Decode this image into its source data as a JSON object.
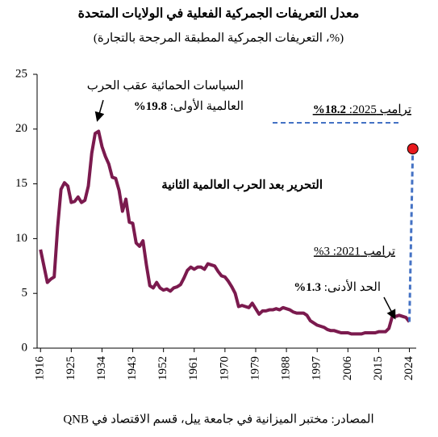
{
  "title": "معدل التعريفات الجمركية الفعلية في الولايات المتحدة",
  "subtitle": "(%، التعريفات الجمركية المطبقة المرجحة بالتجارة)",
  "source": "المصادر: مختبر الميزانية في جامعة ييل، قسم الاقتصاد في QNB",
  "chart_data": {
    "type": "line",
    "x": [
      1916,
      1917,
      1918,
      1919,
      1920,
      1921,
      1922,
      1923,
      1924,
      1925,
      1926,
      1927,
      1928,
      1929,
      1930,
      1931,
      1932,
      1933,
      1934,
      1935,
      1936,
      1937,
      1938,
      1939,
      1940,
      1941,
      1942,
      1943,
      1944,
      1945,
      1946,
      1947,
      1948,
      1949,
      1950,
      1951,
      1952,
      1953,
      1954,
      1955,
      1956,
      1957,
      1958,
      1959,
      1960,
      1961,
      1962,
      1963,
      1964,
      1965,
      1966,
      1967,
      1968,
      1969,
      1970,
      1971,
      1972,
      1973,
      1974,
      1975,
      1976,
      1977,
      1978,
      1979,
      1980,
      1981,
      1982,
      1983,
      1984,
      1985,
      1986,
      1987,
      1988,
      1989,
      1990,
      1991,
      1992,
      1993,
      1994,
      1995,
      1996,
      1997,
      1998,
      1999,
      2000,
      2001,
      2002,
      2003,
      2004,
      2005,
      2006,
      2007,
      2008,
      2009,
      2010,
      2011,
      2012,
      2013,
      2014,
      2015,
      2016,
      2017,
      2018,
      2019,
      2020,
      2021,
      2022,
      2023,
      2024
    ],
    "series": [
      {
        "color": "#7b1a4e",
        "values": [
          9,
          7.5,
          6,
          6.3,
          6.5,
          11,
          14.5,
          15.1,
          14.8,
          13.3,
          13.4,
          13.8,
          13.3,
          13.5,
          14.8,
          17.8,
          19.6,
          19.8,
          18.4,
          17.5,
          16.8,
          15.6,
          15.5,
          14.4,
          12.5,
          13.6,
          11.5,
          11.4,
          9.6,
          9.3,
          9.8,
          7.6,
          5.7,
          5.5,
          6,
          5.5,
          5.3,
          5.4,
          5.2,
          5.5,
          5.6,
          5.8,
          6.4,
          7.1,
          7.4,
          7.2,
          7.4,
          7.4,
          7.2,
          7.7,
          7.6,
          7.5,
          7,
          6.6,
          6.5,
          6.1,
          5.6,
          5,
          3.8,
          3.9,
          3.8,
          3.7,
          4.1,
          3.6,
          3.1,
          3.4,
          3.4,
          3.5,
          3.5,
          3.6,
          3.5,
          3.7,
          3.6,
          3.5,
          3.3,
          3.2,
          3.2,
          3.2,
          3,
          2.5,
          2.3,
          2.1,
          2,
          1.9,
          1.7,
          1.6,
          1.6,
          1.5,
          1.4,
          1.4,
          1.4,
          1.3,
          1.3,
          1.3,
          1.3,
          1.4,
          1.4,
          1.4,
          1.4,
          1.5,
          1.5,
          1.5,
          1.8,
          2.9,
          2.9,
          3,
          2.9,
          2.8,
          2.4
        ]
      }
    ],
    "projection": {
      "x": 2025,
      "value": 18.2,
      "color": "#e8191d",
      "line_color": "#4472c4"
    },
    "xlim": [
      1915,
      2026
    ],
    "xticks": [
      1916,
      1925,
      1934,
      1943,
      1952,
      1961,
      1970,
      1979,
      1988,
      1997,
      2006,
      2015,
      2024
    ],
    "ylim": [
      0,
      25
    ],
    "yticks": [
      0,
      5,
      10,
      15,
      20,
      25
    ],
    "annotations": {
      "peak_1": "السياسات الحمائية عقب الحرب",
      "peak_2": "العالمية الأولى: ",
      "peak_value": "19.8%",
      "liberalization": "التحرير بعد الحرب العالمية الثانية",
      "trump2025": "ترامب 2025: ",
      "trump2025_value": "18.2%",
      "trump2021": "ترامب 2021: 3%",
      "minimum": "الحد الأدنى: ",
      "minimum_value": "1.3%"
    }
  }
}
